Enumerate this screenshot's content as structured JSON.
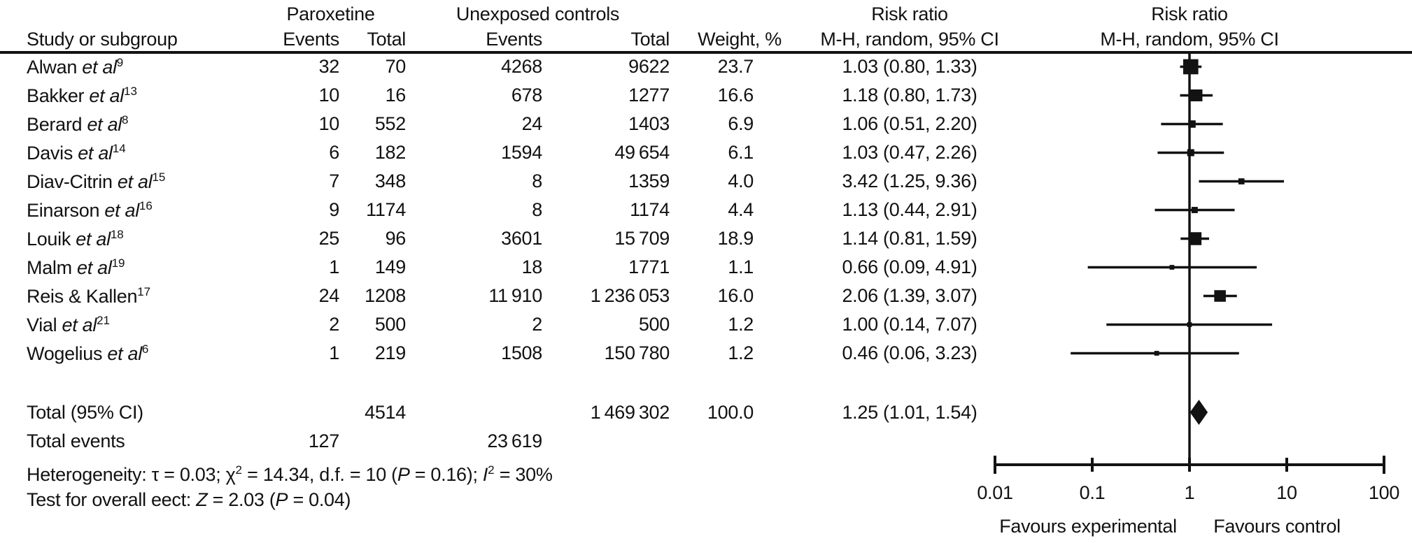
{
  "figure": {
    "header": {
      "col_study": "Study or subgroup",
      "group1": "Paroxetine",
      "group2": "Unexposed controls",
      "events": "Events",
      "total": "Total",
      "weight": "Weight, %",
      "risk_ratio": "Risk ratio",
      "mh_ci": "M-H, random, 95% CI"
    },
    "totals": {
      "label": "Total (95% CI)",
      "exp_total": "4514",
      "ctl_total": "1 469 302",
      "weight": "100.0",
      "ci_text": "1.25 (1.01, 1.54)",
      "events_label": "Total events",
      "exp_events": "127",
      "ctl_events": "23 619"
    },
    "heterogeneity_parts": [
      {
        "t": "Heterogeneity: τ = 0.03; "
      },
      {
        "t": "χ"
      },
      {
        "t": "2",
        "sup": true
      },
      {
        "t": " = 14.34, d.f. = 10 ("
      },
      {
        "t": "P",
        "i": true
      },
      {
        "t": " = 0.16); "
      },
      {
        "t": "I",
        "i": true
      },
      {
        "t": "2",
        "sup": true
      },
      {
        "t": " = 30%"
      }
    ],
    "overall_test_parts": [
      {
        "t": "Test for overall eect: "
      },
      {
        "t": "Z",
        "i": true
      },
      {
        "t": " = 2.03 ("
      },
      {
        "t": "P",
        "i": true
      },
      {
        "t": " = 0.04)"
      }
    ]
  },
  "chart_data": {
    "type": "forest",
    "x_scale": "log10",
    "effect_measure": "Risk ratio (M-H, random, 95% CI)",
    "axis": {
      "ticks": [
        0.01,
        0.1,
        1,
        10,
        100
      ],
      "tick_labels": [
        "0.01",
        "0.1",
        "1",
        "10",
        "100"
      ],
      "null_value": 1,
      "favours_left": "Favours experimental",
      "favours_right": "Favours control"
    },
    "studies": [
      {
        "name": "Alwan",
        "etal": " et al",
        "ref": "9",
        "exp_events": "32",
        "exp_total": "70",
        "ctl_events": "4268",
        "ctl_total": "9622",
        "weight": "23.7",
        "weight_num": 23.7,
        "ci_text": "1.03 (0.80, 1.33)",
        "rr": 1.03,
        "lo": 0.8,
        "hi": 1.33
      },
      {
        "name": "Bakker",
        "etal": " et al",
        "ref": "13",
        "exp_events": "10",
        "exp_total": "16",
        "ctl_events": "678",
        "ctl_total": "1277",
        "weight": "16.6",
        "weight_num": 16.6,
        "ci_text": "1.18 (0.80, 1.73)",
        "rr": 1.18,
        "lo": 0.8,
        "hi": 1.73
      },
      {
        "name": "Berard",
        "etal": " et al",
        "ref": "8",
        "exp_events": "10",
        "exp_total": "552",
        "ctl_events": "24",
        "ctl_total": "1403",
        "weight": "6.9",
        "weight_num": 6.9,
        "ci_text": "1.06 (0.51, 2.20)",
        "rr": 1.06,
        "lo": 0.51,
        "hi": 2.2
      },
      {
        "name": "Davis",
        "etal": " et al",
        "ref": "14",
        "exp_events": "6",
        "exp_total": "182",
        "ctl_events": "1594",
        "ctl_total": "49 654",
        "weight": "6.1",
        "weight_num": 6.1,
        "ci_text": "1.03 (0.47, 2.26)",
        "rr": 1.03,
        "lo": 0.47,
        "hi": 2.26
      },
      {
        "name": "Diav-Citrin",
        "etal": " et al",
        "ref": "15",
        "exp_events": "7",
        "exp_total": "348",
        "ctl_events": "8",
        "ctl_total": "1359",
        "weight": "4.0",
        "weight_num": 4.0,
        "ci_text": "3.42 (1.25, 9.36)",
        "rr": 3.42,
        "lo": 1.25,
        "hi": 9.36
      },
      {
        "name": "Einarson",
        "etal": " et al",
        "ref": "16",
        "exp_events": "9",
        "exp_total": "1174",
        "ctl_events": "8",
        "ctl_total": "1174",
        "weight": "4.4",
        "weight_num": 4.4,
        "ci_text": "1.13 (0.44, 2.91)",
        "rr": 1.13,
        "lo": 0.44,
        "hi": 2.91
      },
      {
        "name": "Louik",
        "etal": " et al",
        "ref": "18",
        "exp_events": "25",
        "exp_total": "96",
        "ctl_events": "3601",
        "ctl_total": "15 709",
        "weight": "18.9",
        "weight_num": 18.9,
        "ci_text": "1.14 (0.81, 1.59)",
        "rr": 1.14,
        "lo": 0.81,
        "hi": 1.59
      },
      {
        "name": "Malm",
        "etal": " et al",
        "ref": "19",
        "exp_events": "1",
        "exp_total": "149",
        "ctl_events": "18",
        "ctl_total": "1771",
        "weight": "1.1",
        "weight_num": 1.1,
        "ci_text": "0.66 (0.09, 4.91)",
        "rr": 0.66,
        "lo": 0.09,
        "hi": 4.91
      },
      {
        "name": "Reis & Kallen",
        "etal": "",
        "ref": "17",
        "exp_events": "24",
        "exp_total": "1208",
        "ctl_events": "11 910",
        "ctl_total": "1 236 053",
        "weight": "16.0",
        "weight_num": 16.0,
        "ci_text": "2.06 (1.39, 3.07)",
        "rr": 2.06,
        "lo": 1.39,
        "hi": 3.07
      },
      {
        "name": "Vial",
        "etal": " et al",
        "ref": "21",
        "exp_events": "2",
        "exp_total": "500",
        "ctl_events": "2",
        "ctl_total": "500",
        "weight": "1.2",
        "weight_num": 1.2,
        "ci_text": "1.00 (0.14, 7.07)",
        "rr": 1.0,
        "lo": 0.14,
        "hi": 7.07
      },
      {
        "name": "Wogelius",
        "etal": " et al",
        "ref": "6",
        "exp_events": "1",
        "exp_total": "219",
        "ctl_events": "1508",
        "ctl_total": "150 780",
        "weight": "1.2",
        "weight_num": 1.2,
        "ci_text": "0.46 (0.06, 3.23)",
        "rr": 0.46,
        "lo": 0.06,
        "hi": 3.23
      }
    ],
    "total": {
      "rr": 1.25,
      "lo": 1.01,
      "hi": 1.54
    },
    "ink_color": "#121212"
  }
}
